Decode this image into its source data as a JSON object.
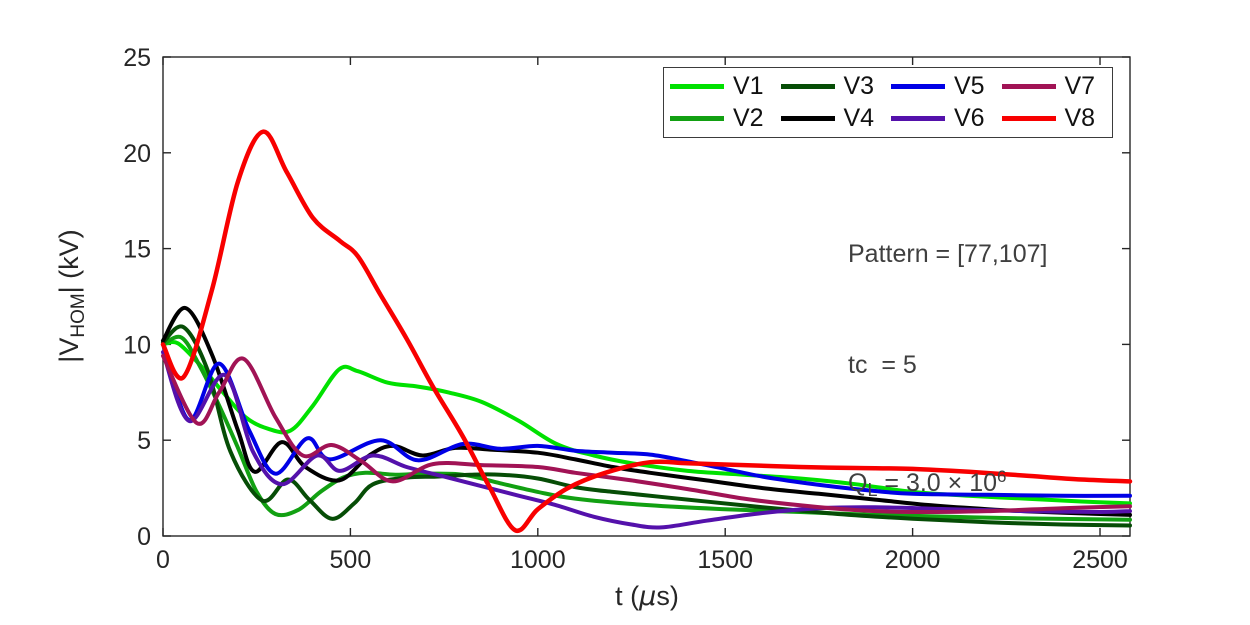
{
  "figure": {
    "background": "#FFFFFF",
    "axis_color": "#262626",
    "tick_color": "#262626"
  },
  "annotation": {
    "pattern_line": "Pattern = [77,107]",
    "tc_line": "tc  = 5",
    "ql_parts": {
      "q": "Q",
      "sub": "L",
      "mid": " = 3.0 × 10",
      "sup": "6"
    }
  },
  "labels": {
    "xlabel_pre": "t (",
    "xlabel_mu": "μ",
    "xlabel_post": "s)",
    "ylabel_pre": "|V",
    "ylabel_sub": "HOM",
    "ylabel_post": "| (kV)"
  },
  "chart_data": {
    "type": "line",
    "title": "",
    "xlabel": "t (μs)",
    "ylabel": "|V_HOM| (kV)",
    "xlim": [
      0,
      2580
    ],
    "ylim": [
      0,
      25
    ],
    "xticks": [
      0,
      500,
      1000,
      1500,
      2000,
      2500
    ],
    "yticks": [
      0,
      5,
      10,
      15,
      20,
      25
    ],
    "grid": false,
    "legend_position": "top-right-inside",
    "legend_order": "column-major",
    "series": [
      {
        "name": "V1",
        "color": "#00E100",
        "width": 4,
        "t": [
          0,
          40,
          100,
          160,
          220,
          280,
          340,
          400,
          470,
          520,
          600,
          680,
          760,
          850,
          950,
          1050,
          1150,
          1250,
          1400,
          1550,
          1700,
          1850,
          2000,
          2150,
          2300,
          2450,
          2580
        ],
        "v": [
          10.0,
          10.05,
          8.9,
          7.5,
          6.2,
          5.6,
          5.5,
          6.8,
          8.7,
          8.6,
          8.0,
          7.8,
          7.5,
          7.0,
          6.0,
          4.8,
          4.2,
          3.8,
          3.4,
          3.2,
          3.0,
          2.7,
          2.3,
          2.1,
          1.95,
          1.8,
          1.7
        ]
      },
      {
        "name": "V2",
        "color": "#12A012",
        "width": 4,
        "t": [
          0,
          50,
          100,
          150,
          200,
          250,
          300,
          360,
          420,
          480,
          540,
          620,
          700,
          800,
          900,
          1000,
          1100,
          1300,
          1500,
          1700,
          1900,
          2100,
          2300,
          2580
        ],
        "v": [
          10.0,
          10.35,
          8.8,
          6.8,
          4.6,
          2.3,
          1.15,
          1.35,
          2.3,
          3.05,
          3.3,
          3.2,
          3.25,
          3.2,
          2.75,
          2.3,
          1.95,
          1.6,
          1.4,
          1.25,
          1.1,
          1.0,
          0.92,
          0.85
        ]
      },
      {
        "name": "V3",
        "color": "#064D06",
        "width": 4,
        "t": [
          0,
          55,
          120,
          180,
          265,
          333,
          390,
          451,
          510,
          560,
          650,
          730,
          820,
          900,
          1000,
          1100,
          1200,
          1400,
          1600,
          1800,
          2000,
          2200,
          2400,
          2580
        ],
        "v": [
          10.1,
          10.9,
          8.6,
          4.4,
          1.85,
          2.95,
          1.9,
          0.9,
          1.7,
          2.7,
          3.05,
          3.1,
          3.2,
          3.2,
          3.0,
          2.55,
          2.3,
          1.9,
          1.5,
          1.15,
          0.9,
          0.72,
          0.6,
          0.55
        ]
      },
      {
        "name": "V4",
        "color": "#000000",
        "width": 4,
        "t": [
          0,
          60,
          130,
          200,
          245,
          317,
          380,
          470,
          550,
          613,
          693,
          780,
          880,
          1000,
          1100,
          1200,
          1300,
          1450,
          1600,
          1750,
          1900,
          2050,
          2200,
          2350,
          2500,
          2580
        ],
        "v": [
          10.2,
          11.9,
          9.5,
          5.5,
          3.35,
          4.9,
          3.6,
          2.9,
          4.2,
          4.7,
          4.2,
          4.6,
          4.5,
          4.35,
          4.0,
          3.6,
          3.3,
          2.9,
          2.5,
          2.2,
          1.9,
          1.6,
          1.4,
          1.25,
          1.15,
          1.1
        ]
      },
      {
        "name": "V5",
        "color": "#0000E6",
        "width": 4,
        "t": [
          0,
          70,
          150,
          230,
          300,
          385,
          445,
          580,
          680,
          800,
          900,
          1000,
          1100,
          1200,
          1300,
          1400,
          1500,
          1600,
          1700,
          1800,
          1900,
          2000,
          2200,
          2400,
          2580
        ],
        "v": [
          10.0,
          6.05,
          9.0,
          5.5,
          3.25,
          5.1,
          4.0,
          5.0,
          3.95,
          4.8,
          4.55,
          4.7,
          4.45,
          4.35,
          4.25,
          3.9,
          3.5,
          3.1,
          2.8,
          2.55,
          2.35,
          2.2,
          2.15,
          2.1,
          2.1
        ]
      },
      {
        "name": "V6",
        "color": "#5411AB",
        "width": 4,
        "t": [
          0,
          70,
          165,
          240,
          317,
          411,
          472,
          560,
          650,
          750,
          850,
          950,
          1050,
          1150,
          1250,
          1330,
          1450,
          1600,
          1750,
          1900,
          2100,
          2300,
          2500,
          2580
        ],
        "v": [
          9.6,
          6.0,
          8.4,
          4.4,
          2.7,
          4.2,
          3.4,
          4.2,
          3.6,
          3.1,
          2.6,
          2.1,
          1.6,
          1.0,
          0.6,
          0.45,
          0.8,
          1.2,
          1.45,
          1.5,
          1.4,
          1.3,
          1.25,
          1.3
        ]
      },
      {
        "name": "V7",
        "color": "#A11355",
        "width": 4,
        "t": [
          0,
          90,
          150,
          215,
          300,
          373,
          450,
          530,
          613,
          720,
          850,
          1000,
          1100,
          1250,
          1400,
          1550,
          1700,
          1850,
          2000,
          2200,
          2400,
          2580
        ],
        "v": [
          9.4,
          5.9,
          7.5,
          9.25,
          6.2,
          4.2,
          4.75,
          3.9,
          2.85,
          3.75,
          3.7,
          3.6,
          3.3,
          2.9,
          2.45,
          1.95,
          1.6,
          1.35,
          1.25,
          1.3,
          1.45,
          1.55
        ]
      },
      {
        "name": "V8",
        "color": "#F80000",
        "width": 4.5,
        "t": [
          0,
          55,
          130,
          200,
          267,
          330,
          400,
          472,
          520,
          580,
          650,
          720,
          800,
          870,
          940,
          1000,
          1080,
          1180,
          1300,
          1400,
          1550,
          1700,
          1850,
          2000,
          2150,
          2300,
          2450,
          2580
        ],
        "v": [
          10.0,
          8.3,
          12.8,
          18.5,
          21.1,
          19.0,
          16.6,
          15.4,
          14.6,
          12.6,
          10.3,
          7.8,
          5.2,
          2.6,
          0.3,
          1.4,
          2.5,
          3.3,
          3.85,
          3.8,
          3.7,
          3.6,
          3.55,
          3.5,
          3.35,
          3.15,
          2.95,
          2.85
        ]
      }
    ]
  }
}
